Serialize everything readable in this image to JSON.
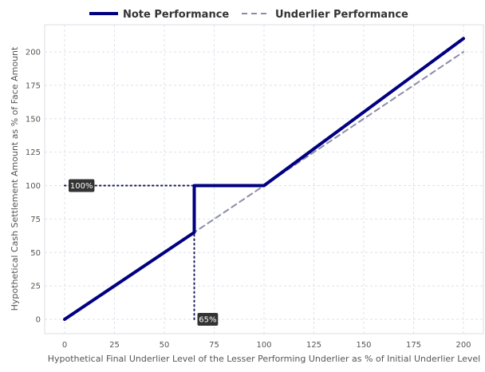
{
  "chart_data": {
    "type": "line",
    "xlabel": "Hypothetical Final Underlier Level of the Lesser Performing Underlier as % of Initial Underlier Level",
    "ylabel": "Hypothetical Cash Settlement Amount as % of Face Amount",
    "xlim": [
      -10,
      210
    ],
    "ylim": [
      -10,
      222
    ],
    "x_ticks": [
      0,
      25,
      50,
      75,
      100,
      125,
      150,
      175,
      200
    ],
    "y_ticks": [
      0,
      25,
      50,
      75,
      100,
      125,
      150,
      175,
      200
    ],
    "x_tick_labels": [
      "0",
      "25",
      "50",
      "75",
      "100",
      "125",
      "150",
      "175",
      "200"
    ],
    "y_tick_labels": [
      "0",
      "25",
      "50",
      "75",
      "100",
      "125",
      "150",
      "175",
      "200"
    ],
    "grid": true,
    "legend_position": "top-center",
    "series": [
      {
        "name": "Note Performance",
        "color": "#000080",
        "style": "solid",
        "x": [
          0,
          65,
          65,
          100,
          200
        ],
        "y": [
          0,
          65,
          100,
          100,
          210
        ]
      },
      {
        "name": "Underlier Performance",
        "color": "#8c8ca8",
        "style": "dashed",
        "x": [
          0,
          200
        ],
        "y": [
          0,
          200
        ]
      }
    ],
    "reference_lines": [
      {
        "x": [
          0,
          65
        ],
        "y": [
          100,
          100
        ],
        "style": "dotted"
      },
      {
        "x": [
          65,
          65
        ],
        "y": [
          0,
          65
        ],
        "style": "dotted"
      }
    ],
    "annotations": [
      {
        "text": "100%",
        "x": 0,
        "y": 100
      },
      {
        "text": "65%",
        "x": 65,
        "y": 0
      }
    ]
  }
}
